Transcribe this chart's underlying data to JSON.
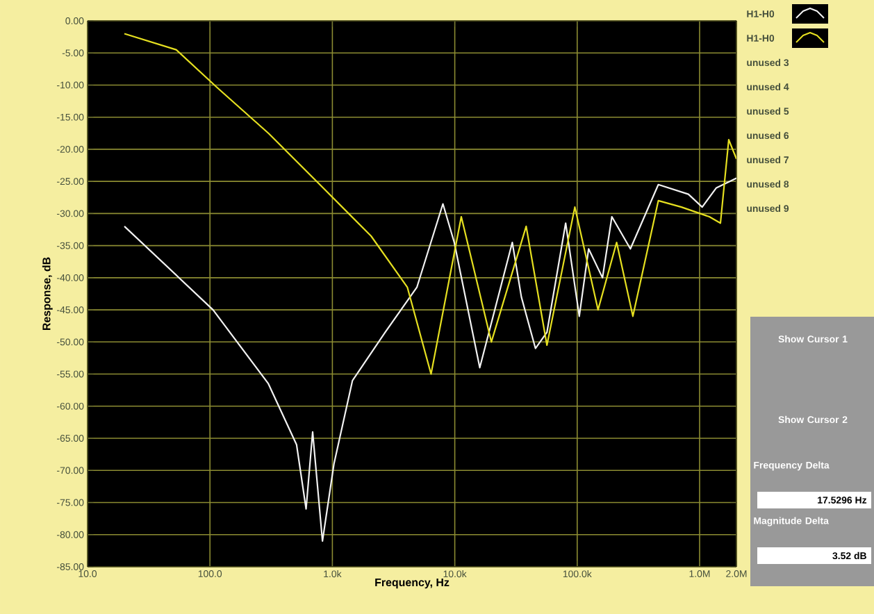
{
  "chart_data": {
    "type": "line",
    "xlabel": "Frequency, Hz",
    "ylabel": "Response, dB",
    "log": "x",
    "grid": true,
    "legend": "right",
    "marker": "none",
    "line_style": "solid",
    "xlim": [
      10,
      2000000
    ],
    "ylim": [
      -85,
      0
    ],
    "xticks": [
      {
        "value": 10,
        "label": "10.0"
      },
      {
        "value": 100,
        "label": "100.0"
      },
      {
        "value": 1000,
        "label": "1.0k"
      },
      {
        "value": 10000,
        "label": "10.0k"
      },
      {
        "value": 100000,
        "label": "100.0k"
      },
      {
        "value": 1000000,
        "label": "1.0M"
      },
      {
        "value": 2000000,
        "label": "2.0M"
      }
    ],
    "yticks": [
      {
        "value": 0,
        "label": "0.00"
      },
      {
        "value": -5,
        "label": "-5.00"
      },
      {
        "value": -10,
        "label": "-10.00"
      },
      {
        "value": -15,
        "label": "-15.00"
      },
      {
        "value": -20,
        "label": "-20.00"
      },
      {
        "value": -25,
        "label": "-25.00"
      },
      {
        "value": -30,
        "label": "-30.00"
      },
      {
        "value": -35,
        "label": "-35.00"
      },
      {
        "value": -40,
        "label": "-40.00"
      },
      {
        "value": -45,
        "label": "-45.00"
      },
      {
        "value": -50,
        "label": "-50.00"
      },
      {
        "value": -55,
        "label": "-55.00"
      },
      {
        "value": -60,
        "label": "-60.00"
      },
      {
        "value": -65,
        "label": "-65.00"
      },
      {
        "value": -70,
        "label": "-70.00"
      },
      {
        "value": -75,
        "label": "-75.00"
      },
      {
        "value": -80,
        "label": "-80.00"
      },
      {
        "value": -85,
        "label": "-85.00"
      }
    ],
    "series": [
      {
        "name": "H1-H0",
        "color": "#f2f2f2",
        "x": [
          20,
          106,
          300,
          510,
          610,
          690,
          830,
          1030,
          1460,
          2700,
          4900,
          8000,
          9900,
          16000,
          29500,
          35000,
          45600,
          56600,
          80500,
          104000,
          124000,
          161000,
          192000,
          272000,
          460000,
          810000,
          1050000,
          1370000,
          2000000
        ],
        "values": [
          -32,
          -45,
          -56.5,
          -66,
          -76,
          -64,
          -81,
          -69,
          -56,
          -48.5,
          -41.5,
          -28.5,
          -34.5,
          -54,
          -34.5,
          -43,
          -51,
          -48.5,
          -31.5,
          -46,
          -35.5,
          -40,
          -30.5,
          -35.5,
          -25.5,
          -27,
          -29,
          -26,
          -24.5
        ]
      },
      {
        "name": "H1-H0",
        "color": "#e6e020",
        "x": [
          20,
          53,
          116,
          300,
          790,
          2070,
          4100,
          6400,
          11300,
          19900,
          38300,
          56600,
          95700,
          148000,
          210000,
          285000,
          460000,
          710000,
          1200000,
          1480000,
          1730000,
          2000000
        ],
        "values": [
          -2,
          -4.5,
          -10.5,
          -17.5,
          -25.5,
          -33.5,
          -41.5,
          -55,
          -30.5,
          -50,
          -32,
          -50.5,
          -29,
          -45,
          -34.5,
          -46,
          -28,
          -29,
          -30.5,
          -31.5,
          -18.5,
          -21.5
        ]
      }
    ],
    "annotations": [
      "unused 3",
      "unused 4",
      "unused 5",
      "unused 6",
      "unused 7",
      "unused 8",
      "unused 9",
      "Show Cursor 1",
      "Show Cursor 2",
      "Frequency Delta",
      "17.5296 Hz",
      "Magnitude Delta",
      "3.52 dB"
    ]
  }
}
